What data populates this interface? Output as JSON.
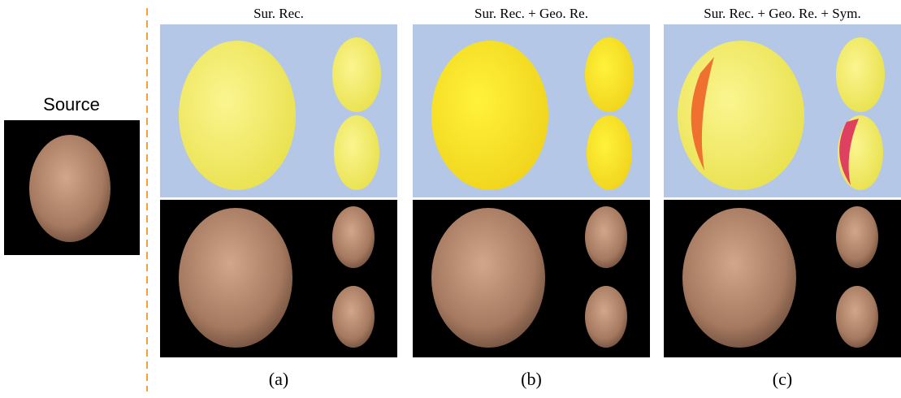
{
  "source": {
    "label": "Source"
  },
  "columns": [
    {
      "title": "Sur. Rec.",
      "caption": "(a)"
    },
    {
      "title": "Sur. Rec. + Geo. Re.",
      "caption": "(b)"
    },
    {
      "title": "Sur. Rec. + Geo. Re. + Sym.",
      "caption": "(c)"
    }
  ]
}
